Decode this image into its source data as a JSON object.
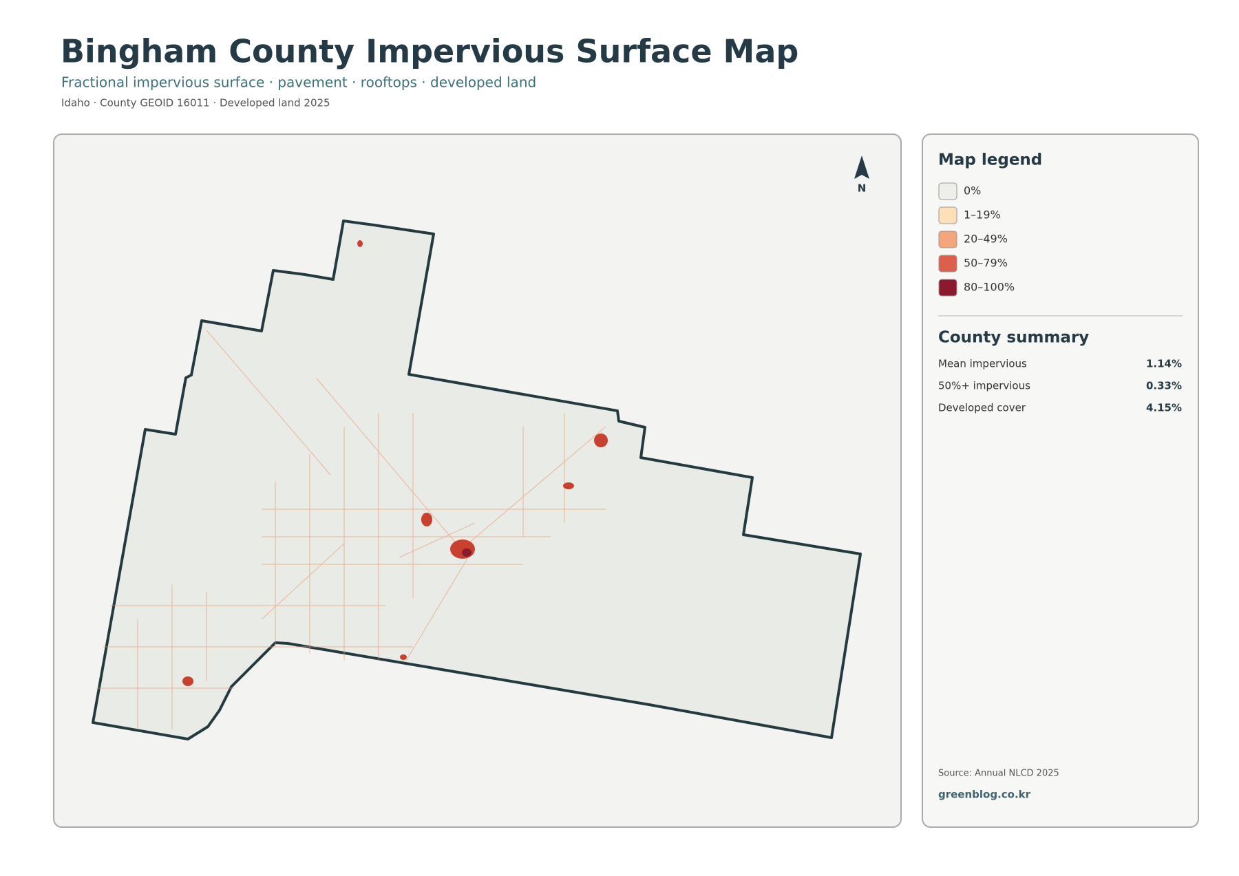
{
  "header": {
    "title": "Bingham County Impervious Surface Map",
    "subtitle": "Fractional impervious surface · pavement · rooftops · developed land",
    "meta": "Idaho · County GEOID 16011 · Developed land 2025"
  },
  "map": {
    "north_label": "N"
  },
  "legend": {
    "title": "Map legend",
    "items": [
      {
        "label": "0%",
        "color": "#eeeeea"
      },
      {
        "label": "1–19%",
        "color": "#fde0b8"
      },
      {
        "label": "20–49%",
        "color": "#f4a57a"
      },
      {
        "label": "50–79%",
        "color": "#dd5f4b"
      },
      {
        "label": "80–100%",
        "color": "#8c1a2e"
      }
    ]
  },
  "summary": {
    "title": "County summary",
    "rows": [
      {
        "label": "Mean impervious",
        "value": "1.14%"
      },
      {
        "label": "50%+ impervious",
        "value": "0.33%"
      },
      {
        "label": "Developed cover",
        "value": "4.15%"
      }
    ]
  },
  "footer": {
    "source": "Source: Annual NLCD 2025",
    "site": "greenblog.co.kr"
  }
}
